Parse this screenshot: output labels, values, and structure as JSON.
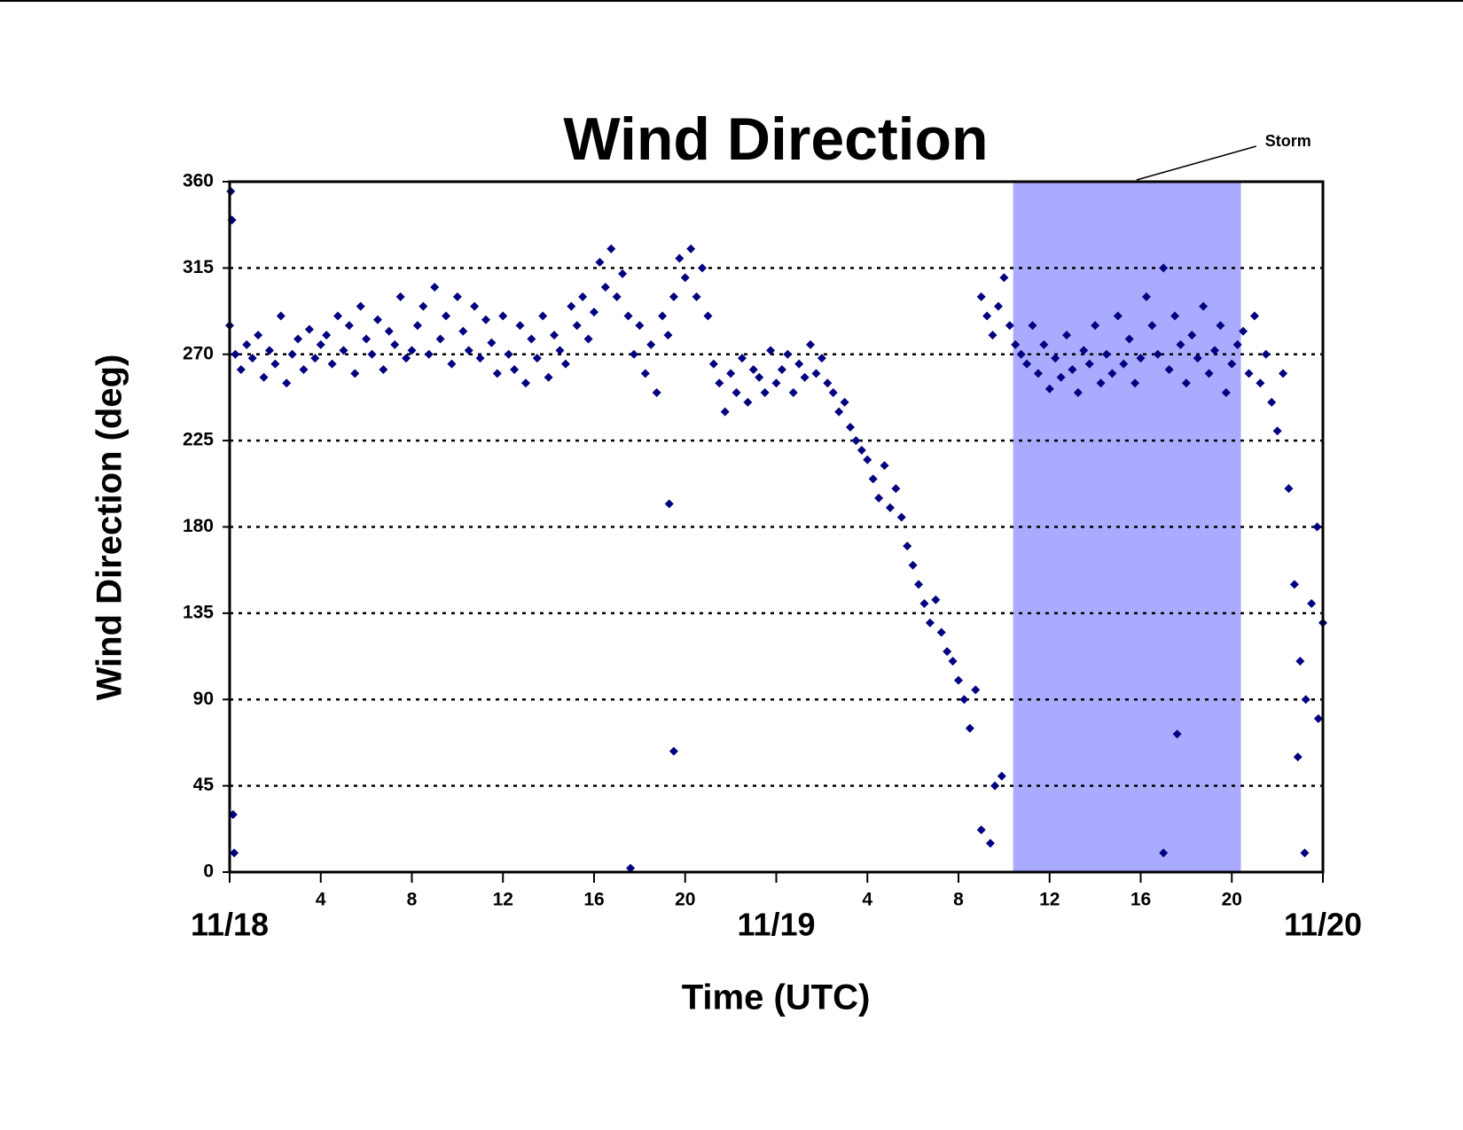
{
  "chart_data": {
    "type": "scatter",
    "title": "Wind Direction",
    "xlabel": "Time (UTC)",
    "ylabel": "Wind Direction (deg)",
    "color": "#000080",
    "marker": "diamond",
    "shaded_region": {
      "label": "Storm",
      "x": [
        34.4,
        44.4
      ],
      "color": "#aaaaff"
    },
    "xlim": [
      0,
      48
    ],
    "ylim": [
      0,
      360
    ],
    "yticks": [
      0,
      45,
      90,
      135,
      180,
      225,
      270,
      315,
      360
    ],
    "xticks": [
      {
        "value": 0,
        "label": "11/18"
      },
      4,
      8,
      12,
      16,
      20,
      {
        "value": 24,
        "label": "11/19"
      },
      {
        "value": 28,
        "label": "4"
      },
      {
        "value": 32,
        "label": "8"
      },
      {
        "value": 36,
        "label": "12"
      },
      {
        "value": 40,
        "label": "16"
      },
      {
        "value": 44,
        "label": "20"
      },
      {
        "value": 48,
        "label": "11/20"
      }
    ],
    "grid": true,
    "x": [
      0,
      0.25,
      0.5,
      0.75,
      1,
      1.25,
      1.5,
      1.75,
      2,
      2.25,
      2.5,
      2.75,
      3,
      3.25,
      3.5,
      3.75,
      4,
      4.25,
      4.5,
      4.75,
      5,
      5.25,
      5.5,
      5.75,
      6,
      6.25,
      6.5,
      6.75,
      7,
      7.25,
      7.5,
      7.75,
      8,
      8.25,
      8.5,
      8.75,
      9,
      9.25,
      9.5,
      9.75,
      10,
      10.25,
      10.5,
      10.75,
      11,
      11.25,
      11.5,
      11.75,
      12,
      12.25,
      12.5,
      12.75,
      13,
      13.25,
      13.5,
      13.75,
      14,
      14.25,
      14.5,
      14.75,
      15,
      15.25,
      15.5,
      15.75,
      16,
      16.25,
      16.5,
      16.75,
      17,
      17.25,
      17.5,
      17.75,
      18,
      18.25,
      18.5,
      18.75,
      19,
      19.25,
      19.5,
      19.75,
      20,
      20.25,
      20.5,
      20.75,
      21,
      21.25,
      21.5,
      21.75,
      22,
      22.25,
      22.5,
      22.75,
      23,
      23.25,
      23.5,
      23.75,
      24,
      24.25,
      24.5,
      24.75,
      25,
      25.25,
      25.5,
      25.75,
      26,
      26.25,
      26.5,
      26.75,
      27,
      27.25,
      27.5,
      27.75,
      28,
      28.25,
      28.5,
      28.75,
      29,
      29.25,
      29.5,
      29.75,
      30,
      30.25,
      30.5,
      30.75,
      31,
      31.25,
      31.5,
      31.75,
      32,
      32.25,
      32.5,
      32.75,
      33,
      33.25,
      33.5,
      33.75,
      34,
      34.25,
      34.5,
      34.75,
      35,
      35.25,
      35.5,
      35.75,
      36,
      36.25,
      36.5,
      36.75,
      37,
      37.25,
      37.5,
      37.75,
      38,
      38.25,
      38.5,
      38.75,
      39,
      39.25,
      39.5,
      39.75,
      40,
      40.25,
      40.5,
      40.75,
      41,
      41.25,
      41.5,
      41.75,
      42,
      42.25,
      42.5,
      42.75,
      43,
      43.25,
      43.5,
      43.75,
      44,
      44.25,
      44.5,
      44.75,
      45,
      45.25,
      45.5,
      45.75,
      46,
      46.25,
      46.5,
      46.75,
      47,
      47.25,
      47.5,
      47.75,
      48,
      0.05,
      0.1,
      0.15,
      0.2,
      17.6,
      19.5,
      19.3,
      33,
      33.4,
      33.6,
      41.6,
      41,
      47.2,
      46.9,
      33.9,
      47.8
    ],
    "values": [
      285,
      270,
      262,
      275,
      268,
      280,
      258,
      272,
      265,
      290,
      255,
      270,
      278,
      262,
      283,
      268,
      275,
      280,
      265,
      290,
      272,
      285,
      260,
      295,
      278,
      270,
      288,
      262,
      282,
      275,
      300,
      268,
      272,
      285,
      295,
      270,
      305,
      278,
      290,
      265,
      300,
      282,
      272,
      295,
      268,
      288,
      276,
      260,
      290,
      270,
      262,
      285,
      255,
      278,
      268,
      290,
      258,
      280,
      272,
      265,
      295,
      285,
      300,
      278,
      292,
      318,
      305,
      325,
      300,
      312,
      290,
      270,
      285,
      260,
      275,
      250,
      290,
      280,
      300,
      320,
      310,
      325,
      300,
      315,
      290,
      265,
      255,
      240,
      260,
      250,
      268,
      245,
      262,
      258,
      250,
      272,
      255,
      262,
      270,
      250,
      265,
      258,
      275,
      260,
      268,
      255,
      250,
      240,
      245,
      232,
      225,
      220,
      215,
      205,
      195,
      212,
      190,
      200,
      185,
      170,
      160,
      150,
      140,
      130,
      142,
      125,
      115,
      110,
      100,
      90,
      75,
      95,
      300,
      290,
      280,
      295,
      310,
      285,
      275,
      270,
      265,
      285,
      260,
      275,
      252,
      268,
      258,
      280,
      262,
      250,
      272,
      265,
      285,
      255,
      270,
      260,
      290,
      265,
      278,
      255,
      268,
      300,
      285,
      270,
      315,
      262,
      290,
      275,
      255,
      280,
      268,
      295,
      260,
      272,
      285,
      250,
      265,
      275,
      282,
      260,
      290,
      255,
      270,
      245,
      230,
      260,
      200,
      150,
      110,
      90,
      140,
      180,
      130,
      355,
      340,
      30,
      10,
      2,
      63,
      192,
      22,
      15,
      45,
      72,
      10,
      10,
      60,
      50,
      80
    ]
  }
}
